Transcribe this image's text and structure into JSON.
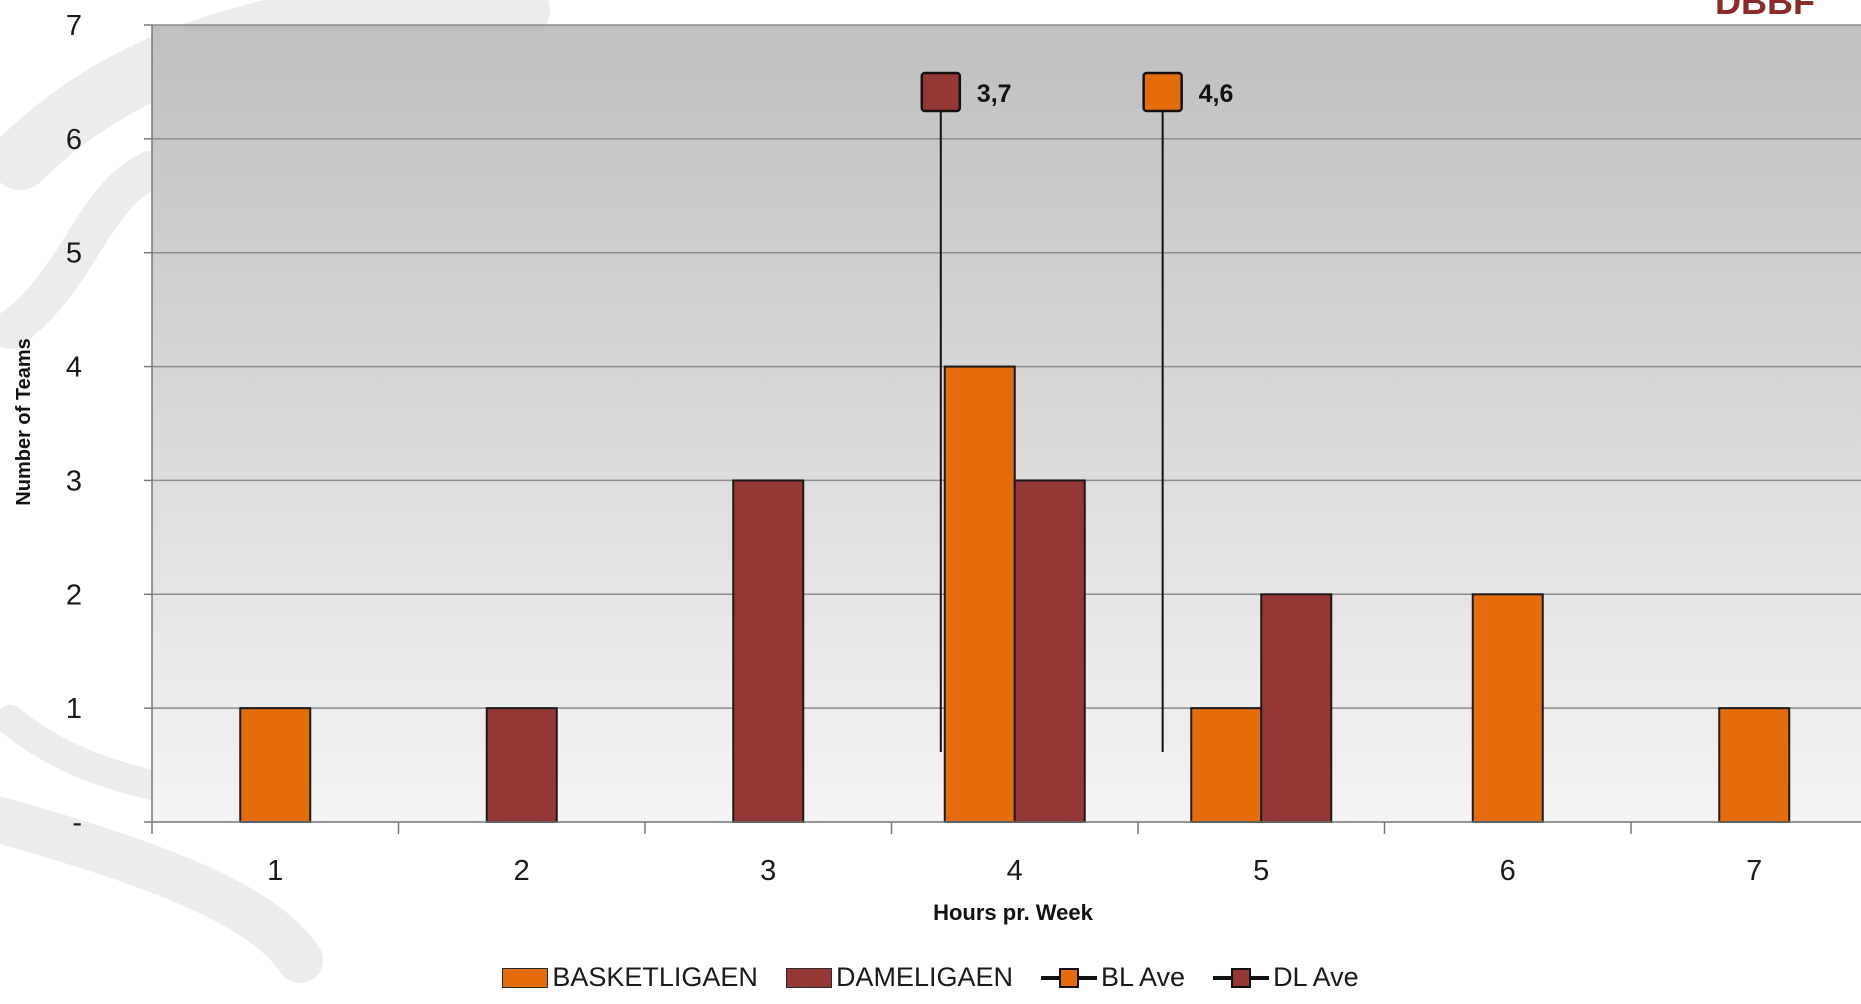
{
  "brand": {
    "logo_text": "DBBF",
    "logo_color": "#8b2a2a"
  },
  "chart_data": {
    "type": "bar",
    "title": "",
    "xlabel": "Hours pr. Week",
    "ylabel": "Number of Teams",
    "categories": [
      "1",
      "2",
      "3",
      "4",
      "5",
      "6",
      "7"
    ],
    "ylim": [
      0,
      7
    ],
    "y_ticks": [
      "-",
      "1",
      "2",
      "3",
      "4",
      "5",
      "6",
      "7"
    ],
    "grid": true,
    "series": [
      {
        "name": "BASKETLIGAEN",
        "values": [
          1,
          0,
          0,
          4,
          1,
          2,
          1
        ],
        "color": "#e46c0a"
      },
      {
        "name": "DAMELIGAEN",
        "values": [
          0,
          1,
          3,
          3,
          2,
          0,
          0
        ],
        "color": "#953735"
      }
    ],
    "averages": [
      {
        "name": "BL Ave",
        "x": 4.6,
        "label": "4,6",
        "color": "#e46c0a"
      },
      {
        "name": "DL Ave",
        "x": 3.7,
        "label": "3,7",
        "color": "#953735"
      }
    ],
    "legend_position": "bottom"
  }
}
